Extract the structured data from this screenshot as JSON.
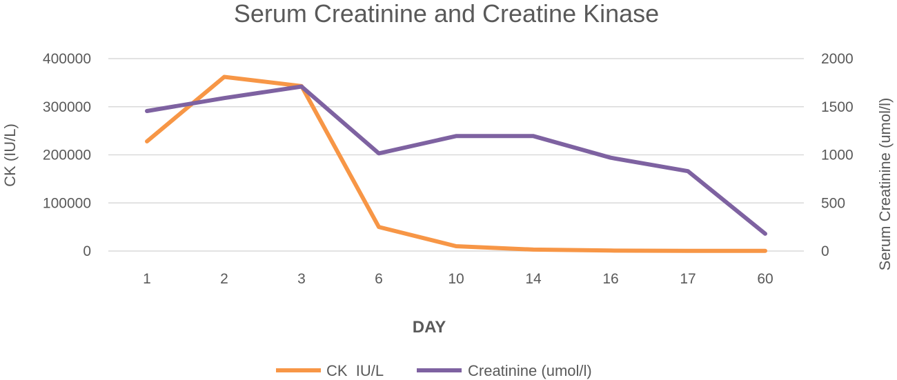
{
  "chart_data": {
    "type": "line",
    "title": "Serum Creatinine and Creatine Kinase",
    "xlabel": "DAY",
    "ylabel": "CK (IU/L)",
    "ylabel_right": "Serum Creatinine (umol/l)",
    "categories": [
      "1",
      "2",
      "3",
      "6",
      "10",
      "14",
      "16",
      "17",
      "60"
    ],
    "ylim": [
      0,
      400000
    ],
    "ylim_right": [
      0,
      2000
    ],
    "yticks": [
      "0",
      "100000",
      "200000",
      "300000",
      "400000"
    ],
    "yticks_right": [
      "0",
      "500",
      "1000",
      "1500",
      "2000"
    ],
    "grid": true,
    "legend_position": "bottom",
    "series": [
      {
        "name": "CK  IU/L",
        "axis": "left",
        "color": "#f79646",
        "values": [
          228000,
          362000,
          343000,
          50000,
          10000,
          3000,
          1000,
          500,
          300
        ]
      },
      {
        "name": "Creatinine (umol/l)",
        "axis": "right",
        "color": "#7e62a1",
        "values": [
          1455,
          1590,
          1710,
          1015,
          1195,
          1195,
          970,
          830,
          180
        ]
      }
    ]
  }
}
